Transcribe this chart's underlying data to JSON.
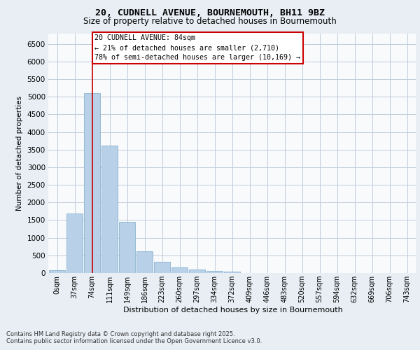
{
  "title_line1": "20, CUDNELL AVENUE, BOURNEMOUTH, BH11 9BZ",
  "title_line2": "Size of property relative to detached houses in Bournemouth",
  "xlabel": "Distribution of detached houses by size in Bournemouth",
  "ylabel": "Number of detached properties",
  "categories": [
    "0sqm",
    "37sqm",
    "74sqm",
    "111sqm",
    "149sqm",
    "186sqm",
    "223sqm",
    "260sqm",
    "297sqm",
    "334sqm",
    "372sqm",
    "409sqm",
    "446sqm",
    "483sqm",
    "520sqm",
    "557sqm",
    "594sqm",
    "632sqm",
    "669sqm",
    "706sqm",
    "743sqm"
  ],
  "bar_heights": [
    75,
    1680,
    5100,
    3620,
    1440,
    620,
    310,
    165,
    105,
    55,
    35,
    0,
    0,
    0,
    0,
    0,
    0,
    0,
    0,
    0,
    0
  ],
  "bar_color": "#b8d0e8",
  "bar_edgecolor": "#7aaac8",
  "vline_x_idx": 2,
  "vline_color": "#cc0000",
  "annotation_text": "20 CUDNELL AVENUE: 84sqm\n← 21% of detached houses are smaller (2,710)\n78% of semi-detached houses are larger (10,169) →",
  "annotation_box_facecolor": "#ffffff",
  "annotation_box_edgecolor": "#cc0000",
  "ylim": [
    0,
    6800
  ],
  "yticks": [
    0,
    500,
    1000,
    1500,
    2000,
    2500,
    3000,
    3500,
    4000,
    4500,
    5000,
    5500,
    6000,
    6500
  ],
  "footer_line1": "Contains HM Land Registry data © Crown copyright and database right 2025.",
  "footer_line2": "Contains public sector information licensed under the Open Government Licence v3.0.",
  "bg_color": "#e8eef4",
  "plot_bg_color": "#f8fafc",
  "grid_color": "#c0ccda"
}
